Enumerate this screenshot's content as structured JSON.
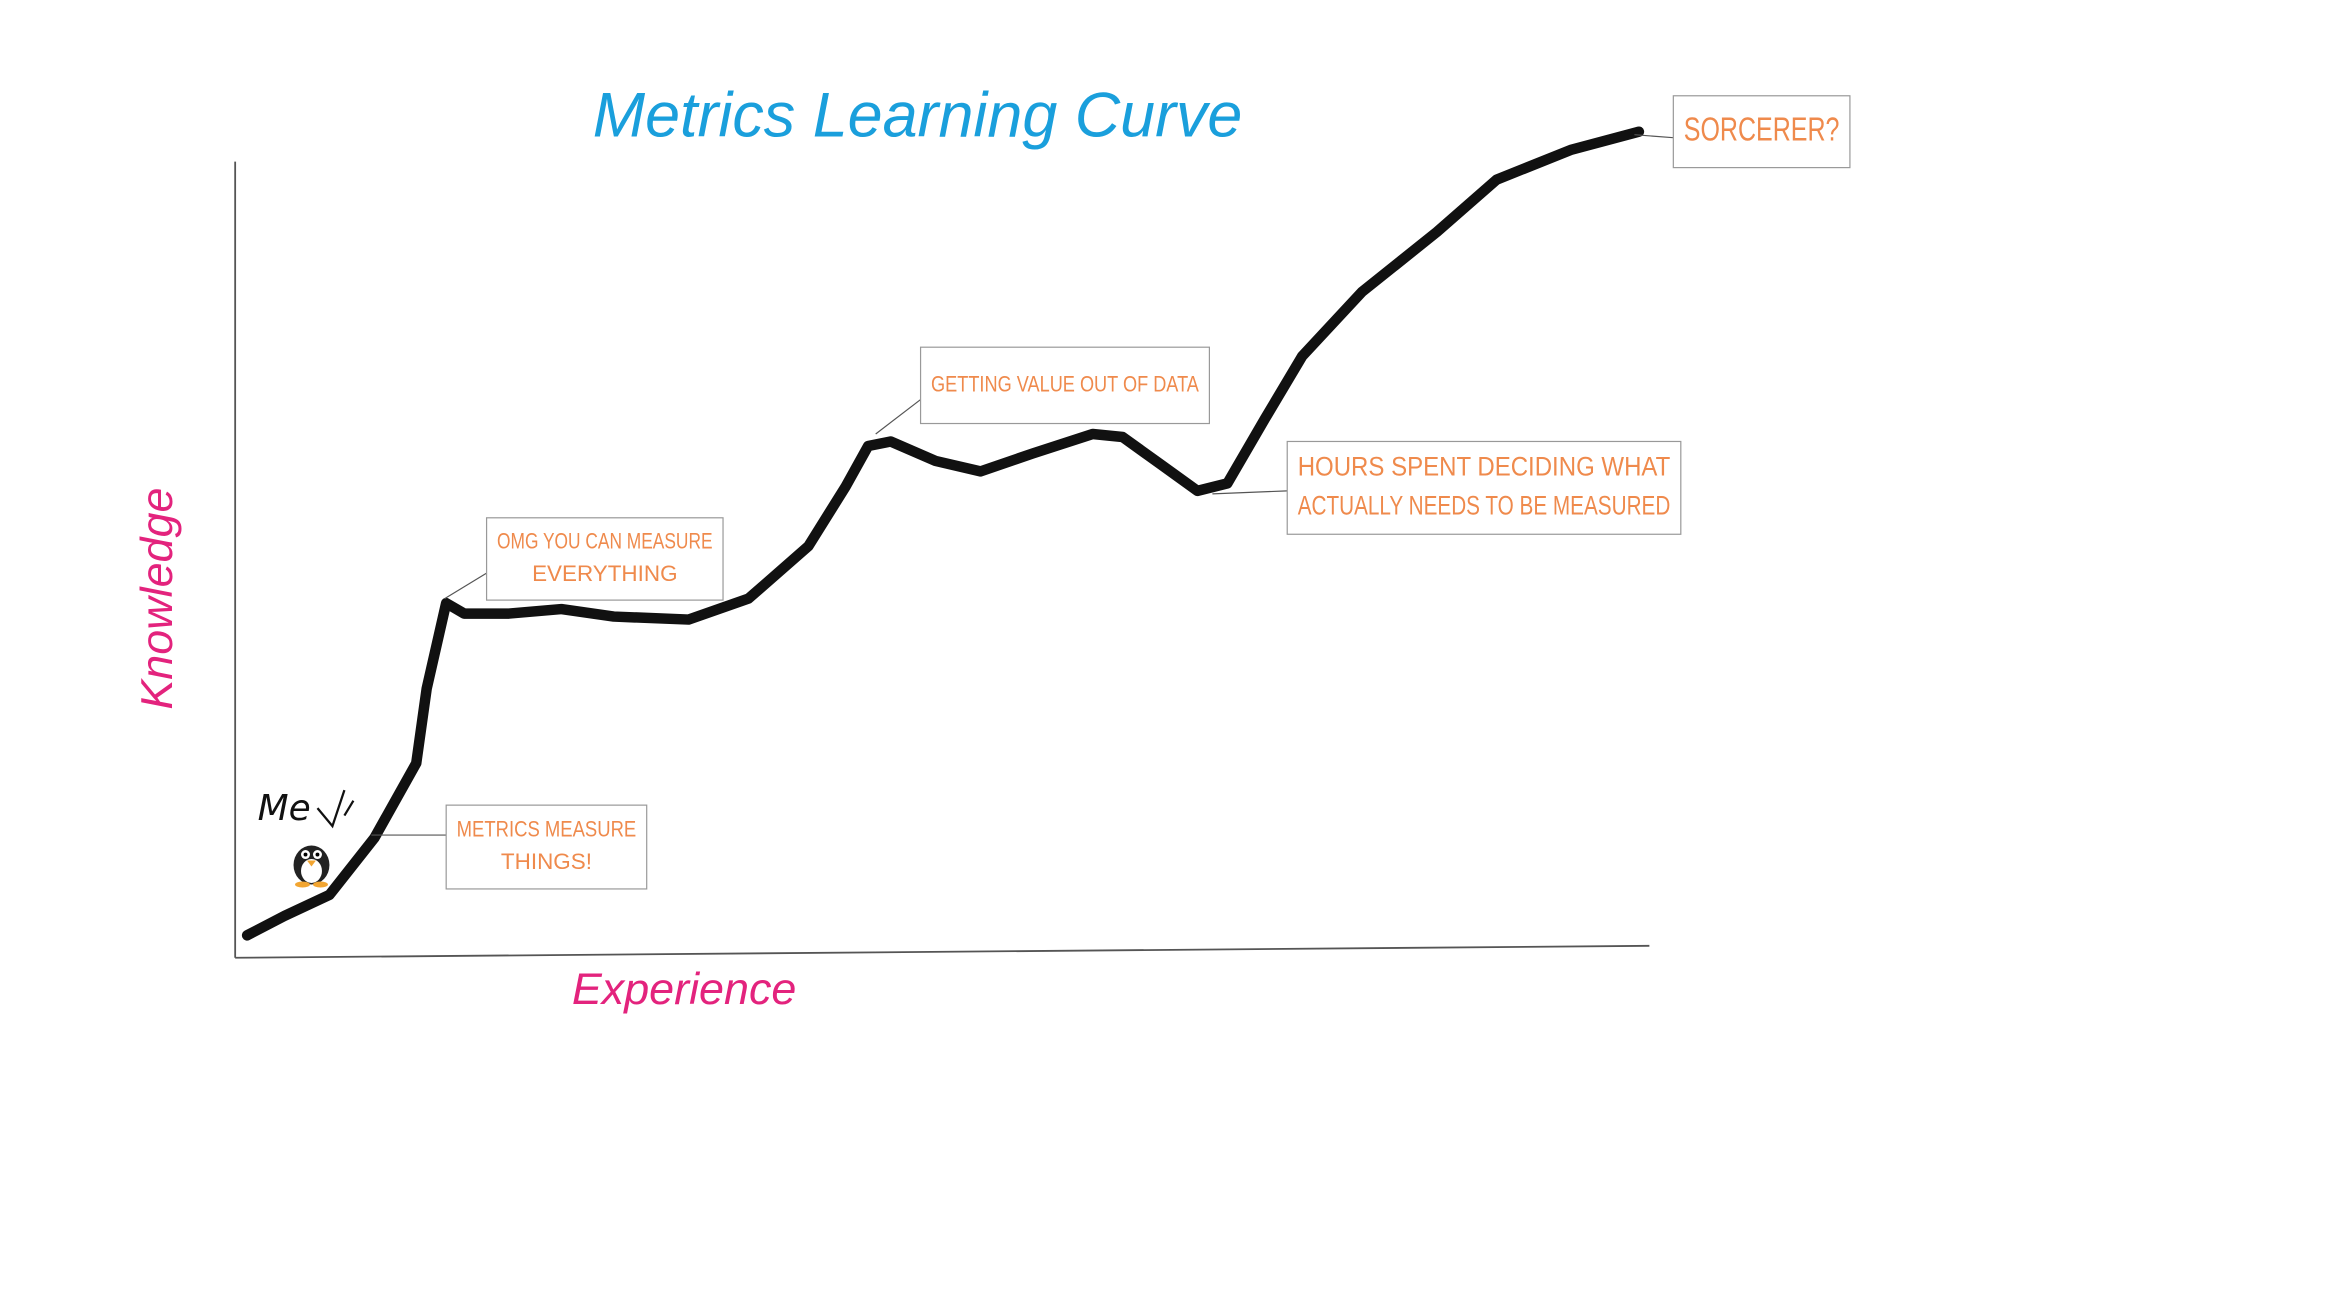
{
  "title": "Metrics Learning Curve",
  "x_axis_label": "Experience",
  "y_axis_label": "Knowledge",
  "me_label": "Me",
  "annotations": [
    {
      "lines": [
        "METRICS MEASURE",
        "THINGS!"
      ]
    },
    {
      "lines": [
        "OMG YOU CAN MEASURE",
        "EVERYTHING"
      ]
    },
    {
      "lines": [
        "GETTING VALUE OUT OF DATA"
      ]
    },
    {
      "lines": [
        "HOURS SPENT DECIDING WHAT",
        "ACTUALLY NEEDS TO BE MEASURED"
      ]
    },
    {
      "lines": [
        "SORCERER?"
      ]
    }
  ]
}
